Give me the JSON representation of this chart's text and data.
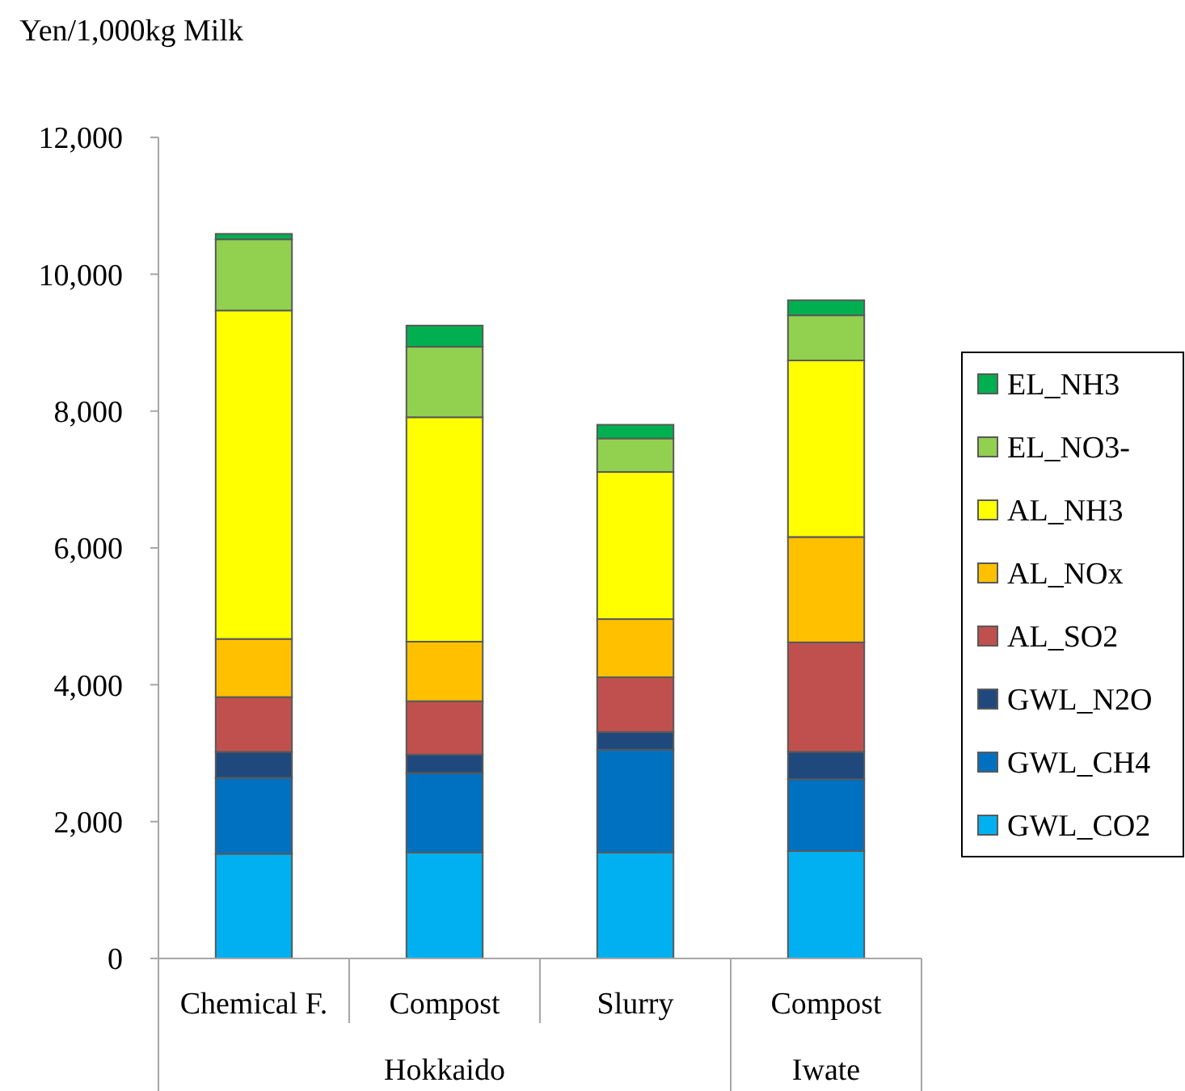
{
  "chart_data": {
    "type": "bar",
    "stacked": true,
    "ylabel": "Yen/1,000kg Milk",
    "categories": [
      "Chemical F.",
      "Compost",
      "Slurry",
      "Compost"
    ],
    "annotations": [
      "Hokkaido",
      "Iwate"
    ],
    "series": [
      {
        "name": "GWL_CO2",
        "color": "#00b0f0",
        "values": [
          1530,
          1550,
          1550,
          1570
        ]
      },
      {
        "name": "GWL_CH4",
        "color": "#0070c0",
        "values": [
          1110,
          1160,
          1500,
          1050
        ]
      },
      {
        "name": "GWL_N2O",
        "color": "#1f497d",
        "values": [
          380,
          270,
          260,
          400
        ]
      },
      {
        "name": "AL_SO2",
        "color": "#c0504d",
        "values": [
          800,
          780,
          800,
          1600
        ]
      },
      {
        "name": "AL_NOx",
        "color": "#ffc000",
        "values": [
          850,
          870,
          850,
          1540
        ]
      },
      {
        "name": "AL_NH3",
        "color": "#ffff00",
        "values": [
          4800,
          3280,
          2150,
          2580
        ]
      },
      {
        "name": "EL_NO3-",
        "color": "#92d050",
        "values": [
          1040,
          1030,
          490,
          660
        ]
      },
      {
        "name": "EL_NH3",
        "color": "#00b050",
        "values": [
          80,
          310,
          200,
          220
        ]
      }
    ],
    "ylim": [
      0,
      12000
    ],
    "yticks": [
      {
        "value": 0,
        "label": "0"
      },
      {
        "value": 2000,
        "label": "2,000"
      },
      {
        "value": 4000,
        "label": "4,000"
      },
      {
        "value": 6000,
        "label": "6,000"
      },
      {
        "value": 8000,
        "label": "8,000"
      },
      {
        "value": 10000,
        "label": "10,000"
      },
      {
        "value": 12000,
        "label": "12,000"
      }
    ],
    "legend": "right"
  }
}
